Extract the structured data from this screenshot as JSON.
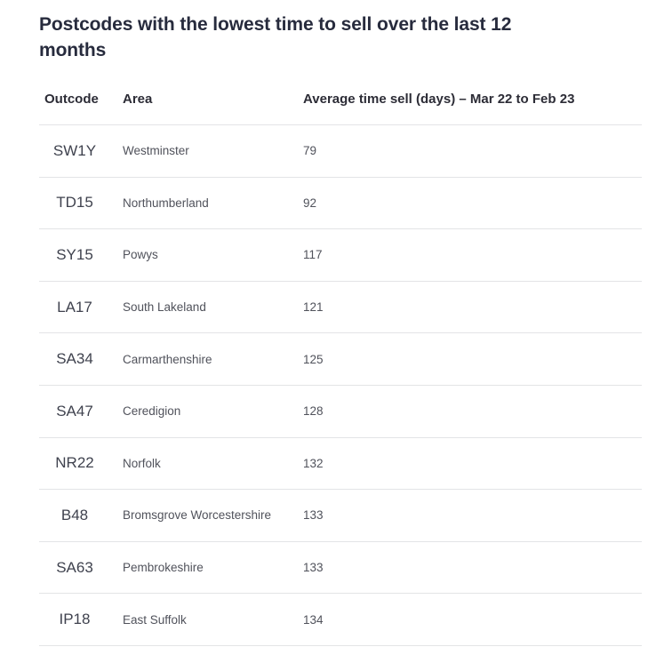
{
  "page": {
    "title": "Postcodes with the lowest time to sell over the last 12 months"
  },
  "table": {
    "columns": [
      "Outcode",
      "Area",
      "Average time sell (days) – Mar 22 to Feb 23"
    ],
    "rows": [
      {
        "outcode": "SW1Y",
        "area": "Westminster",
        "days": "79"
      },
      {
        "outcode": "TD15",
        "area": "Northumberland",
        "days": "92"
      },
      {
        "outcode": "SY15",
        "area": "Powys",
        "days": "117"
      },
      {
        "outcode": "LA17",
        "area": "South Lakeland",
        "days": "121"
      },
      {
        "outcode": "SA34",
        "area": "Carmarthenshire",
        "days": "125"
      },
      {
        "outcode": "SA47",
        "area": "Ceredigion",
        "days": "128"
      },
      {
        "outcode": "NR22",
        "area": "Norfolk",
        "days": "132"
      },
      {
        "outcode": "B48",
        "area": "Bromsgrove Worcestershire",
        "days": "133"
      },
      {
        "outcode": "SA63",
        "area": "Pembrokeshire",
        "days": "133"
      },
      {
        "outcode": "IP18",
        "area": "East Suffolk",
        "days": "134"
      }
    ]
  },
  "colors": {
    "title_text": "#272b3d",
    "header_text": "#2c2c36",
    "outcode_text": "#3f424e",
    "cell_text": "#50525b",
    "divider": "#e3e4e6",
    "background": "#ffffff"
  },
  "chart_data": {
    "type": "table",
    "title": "Postcodes with the lowest time to sell over the last 12 months",
    "columns": [
      "Outcode",
      "Area",
      "Average time sell (days) – Mar 22 to Feb 23"
    ],
    "rows": [
      [
        "SW1Y",
        "Westminster",
        79
      ],
      [
        "TD15",
        "Northumberland",
        92
      ],
      [
        "SY15",
        "Powys",
        117
      ],
      [
        "LA17",
        "South Lakeland",
        121
      ],
      [
        "SA34",
        "Carmarthenshire",
        125
      ],
      [
        "SA47",
        "Ceredigion",
        128
      ],
      [
        "NR22",
        "Norfolk",
        132
      ],
      [
        "B48",
        "Bromsgrove Worcestershire",
        133
      ],
      [
        "SA63",
        "Pembrokeshire",
        133
      ],
      [
        "IP18",
        "East Suffolk",
        134
      ]
    ]
  }
}
